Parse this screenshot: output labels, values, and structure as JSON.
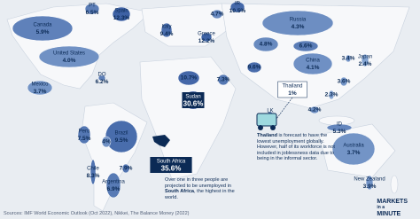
{
  "map": {
    "regions": [
      {
        "name": "PT",
        "value": 6.5,
        "value_label": "6.5%"
      },
      {
        "name": "Spain",
        "value": 12.3,
        "value_label": "12.3%"
      },
      {
        "name": "IR",
        "value": 10.5,
        "value_label": "10.5%"
      },
      {
        "value": 4.7,
        "value_label": "4.7%"
      },
      {
        "name": "Italy",
        "value": 9.4,
        "value_label": "9.4%"
      },
      {
        "name": "Greece",
        "value": 12.2,
        "value_label": "12.2%"
      },
      {
        "name": "Russia",
        "value": 4.3,
        "value_label": "4.3%"
      },
      {
        "name": "Canada",
        "value": 5.9,
        "value_label": "5.9%"
      },
      {
        "name": "United States",
        "value": 4.0,
        "value_label": "4.0%"
      },
      {
        "name": "DO",
        "value": 6.2,
        "value_label": "6.2%"
      },
      {
        "name": "Mexico",
        "value": 3.7,
        "value_label": "3.7%"
      },
      {
        "value": 10.7,
        "value_label": "10.7%"
      },
      {
        "value": 7.3,
        "value_label": "7.3%"
      },
      {
        "name": "Sudan",
        "value": 30.6,
        "value_label": "30.6%"
      },
      {
        "value": 4.8,
        "value_label": "4.8%"
      },
      {
        "value": 6.6,
        "value_label": "6.6%"
      },
      {
        "value": 9.6,
        "value_label": "9.6%"
      },
      {
        "name": "China",
        "value": 4.1,
        "value_label": "4.1%"
      },
      {
        "value": 3.4,
        "value_label": "3.4%"
      },
      {
        "name": "Japan",
        "value": 2.4,
        "value_label": "2.4%"
      },
      {
        "name": "Thailand",
        "value": 1,
        "value_label": "1%"
      },
      {
        "value": 3.6,
        "value_label": "3.6%"
      },
      {
        "value": 2.3,
        "value_label": "2.3%"
      },
      {
        "value": 4.2,
        "value_label": "4.2%"
      },
      {
        "name": "LK",
        "value": 5,
        "value_label": "5%"
      },
      {
        "name": "ID",
        "value": 5.3,
        "value_label": "5.3%"
      },
      {
        "name": "Peru",
        "value": 7.5,
        "value_label": "7.5%"
      },
      {
        "name": "Brazil",
        "value": 9.5,
        "value_label": "9.5%"
      },
      {
        "value": 4,
        "value_label": "4%"
      },
      {
        "name": "Chile",
        "value": 8.3,
        "value_label": "8.3%"
      },
      {
        "value": 7.9,
        "value_label": "7.9%"
      },
      {
        "name": "Argentina",
        "value": 6.9,
        "value_label": "6.9%"
      },
      {
        "name": "South Africa",
        "value": 35.6,
        "value_label": "35.6%"
      },
      {
        "name": "Australia",
        "value": 3.7,
        "value_label": "3.7%"
      },
      {
        "name": "New Zealand",
        "value": 3.9,
        "value_label": "3.9%"
      }
    ],
    "thailand_note": [
      "Thailand",
      " is forecast to have the lowest unemployment globally. However, half of its workforce is not included in joblessness data due to being in the informal sector."
    ],
    "south_africa_note": [
      "Over one in three people are projected to be unemployed in ",
      "South Africa",
      ", the highest in the world."
    ],
    "source": "Sources: IMF World Economic Outlook (Oct 2022), Nikkei, The Balance Money (2022)",
    "logo": [
      "MARKETS",
      "in a",
      "MINUTE"
    ]
  }
}
